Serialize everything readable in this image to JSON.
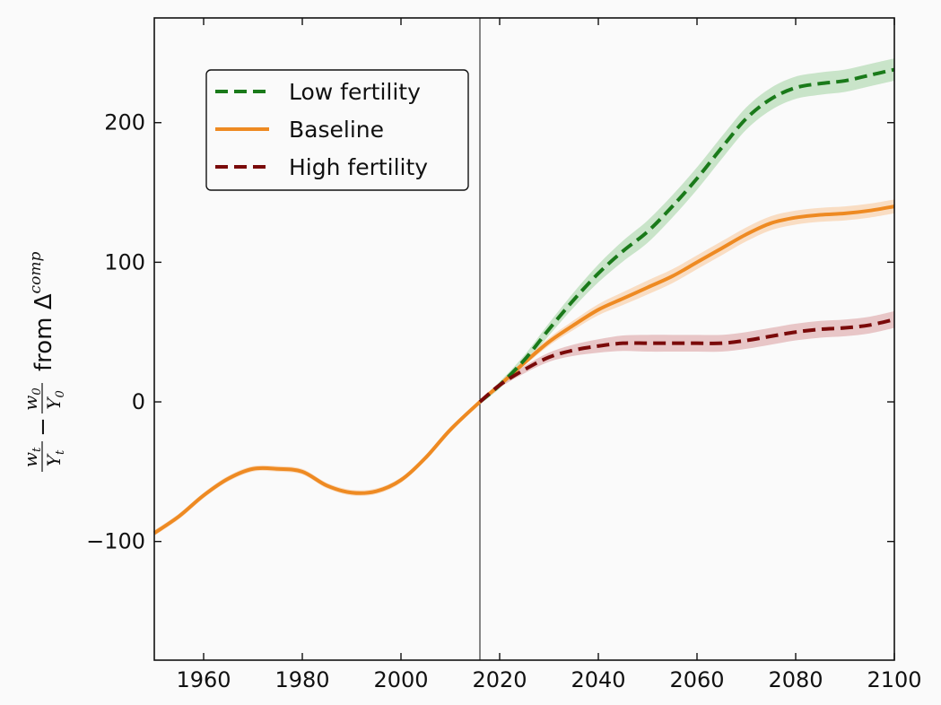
{
  "chart_data": {
    "type": "line",
    "xlabel": "",
    "ylabel_parts": {
      "w_t": "w",
      "sub_t": "t",
      "Y_t": "Y",
      "sub_Yt": "t",
      "minus": "−",
      "w_0": "w",
      "sub_0": "0",
      "Y_0": "Y",
      "sub_Y0": "0",
      "from": "from Δ",
      "comp": "comp"
    },
    "xlim": [
      1950,
      2100
    ],
    "ylim": [
      -185,
      275
    ],
    "x_ticks": [
      1960,
      1980,
      2000,
      2020,
      2040,
      2060,
      2080,
      2100
    ],
    "y_ticks": [
      -100,
      0,
      100,
      200
    ],
    "y_tick_labels": [
      "−100",
      "0",
      "100",
      "200"
    ],
    "reference_line_x": 2016,
    "grid": false,
    "legend_position": "top-left",
    "series": [
      {
        "name": "Low fertility",
        "color": "#1a7a1a",
        "band_color": "#b8dcb8",
        "dash": true,
        "band": 8,
        "x": [
          2016,
          2020,
          2025,
          2030,
          2035,
          2040,
          2045,
          2050,
          2055,
          2060,
          2065,
          2070,
          2075,
          2080,
          2085,
          2090,
          2095,
          2100
        ],
        "y": [
          0,
          12,
          30,
          52,
          73,
          92,
          108,
          122,
          140,
          160,
          182,
          203,
          217,
          225,
          228,
          230,
          234,
          238
        ]
      },
      {
        "name": "Baseline",
        "color": "#ee8a22",
        "band_color": "#f8d3b0",
        "dash": false,
        "band": 5,
        "x": [
          1950,
          1955,
          1960,
          1965,
          1970,
          1975,
          1980,
          1985,
          1990,
          1995,
          2000,
          2005,
          2010,
          2016,
          2020,
          2025,
          2030,
          2035,
          2040,
          2045,
          2050,
          2055,
          2060,
          2065,
          2070,
          2075,
          2080,
          2085,
          2090,
          2095,
          2100
        ],
        "y": [
          -94,
          -82,
          -67,
          -55,
          -48,
          -48,
          -50,
          -60,
          -65,
          -64,
          -56,
          -40,
          -20,
          0,
          12,
          28,
          43,
          55,
          66,
          74,
          82,
          90,
          100,
          110,
          120,
          128,
          132,
          134,
          135,
          137,
          140
        ]
      },
      {
        "name": "High fertility",
        "color": "#7a0a0a",
        "band_color": "#e2b4b6",
        "dash": true,
        "band": 6,
        "x": [
          2016,
          2020,
          2025,
          2030,
          2035,
          2040,
          2045,
          2050,
          2055,
          2060,
          2065,
          2070,
          2075,
          2080,
          2085,
          2090,
          2095,
          2100
        ],
        "y": [
          0,
          12,
          23,
          32,
          37,
          40,
          42,
          42,
          42,
          42,
          42,
          44,
          47,
          50,
          52,
          53,
          55,
          59
        ]
      }
    ]
  }
}
